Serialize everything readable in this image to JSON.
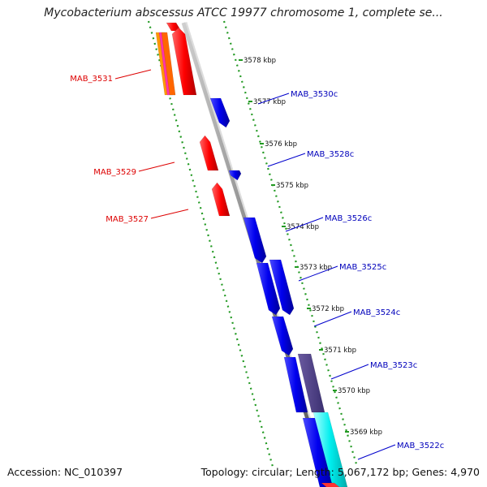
{
  "title": "Mycobacterium abscessus ATCC 19977 chromosome 1, complete se...",
  "footer": {
    "accession": "Accession: NC_010397",
    "stats": "Topology: circular; Length: 5,067,172 bp; Genes: 4,970"
  },
  "colors": {
    "forward": "#ff0000",
    "reverse": "#0000ee",
    "backbone": "#888888",
    "ruler": "#229922",
    "reverse_label": "#0000bb",
    "forward_label": "#dd0000"
  },
  "ticks": [
    {
      "label": "3578 kbp"
    },
    {
      "label": "3577 kbp"
    },
    {
      "label": "3576 kbp"
    },
    {
      "label": "3575 kbp"
    },
    {
      "label": "3574 kbp"
    },
    {
      "label": "3573 kbp"
    },
    {
      "label": "3572 kbp"
    },
    {
      "label": "3571 kbp"
    },
    {
      "label": "3570 kbp"
    },
    {
      "label": "3569 kbp"
    }
  ],
  "gene_labels": [
    {
      "text": "MAB_3531",
      "strand": "forward"
    },
    {
      "text": "MAB_3530c",
      "strand": "reverse"
    },
    {
      "text": "MAB_3529",
      "strand": "forward"
    },
    {
      "text": "MAB_3528c",
      "strand": "reverse"
    },
    {
      "text": "MAB_3527",
      "strand": "forward"
    },
    {
      "text": "MAB_3526c",
      "strand": "reverse"
    },
    {
      "text": "MAB_3525c",
      "strand": "reverse"
    },
    {
      "text": "MAB_3524c",
      "strand": "reverse"
    },
    {
      "text": "MAB_3523c",
      "strand": "reverse"
    },
    {
      "text": "MAB_3522c",
      "strand": "reverse"
    }
  ]
}
